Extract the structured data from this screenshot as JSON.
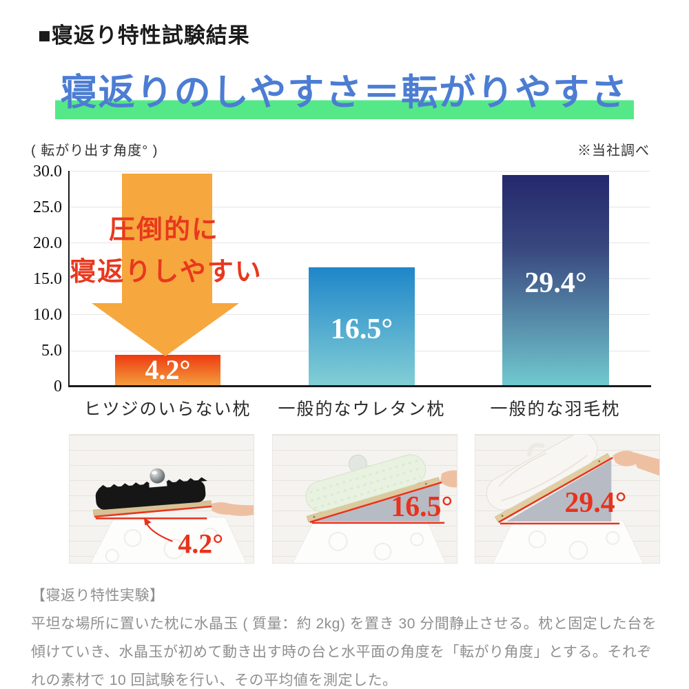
{
  "page": {
    "title": "■寝返り特性試験結果"
  },
  "banner": {
    "text": "寝返りのしやすさ＝転がりやすさ",
    "text_color": "#4c7dd2",
    "highlight_color": "#55e888"
  },
  "notes": {
    "y_axis_unit": "( 転がり出す角度° )",
    "source": "※当社調べ"
  },
  "chart": {
    "chart_data": {
      "type": "bar",
      "categories": [
        "ヒツジのいらない枕",
        "一般的なウレタン枕",
        "一般的な羽毛枕"
      ],
      "values": [
        4.2,
        16.5,
        29.4
      ],
      "value_labels": [
        "4.2°",
        "16.5°",
        "29.4°"
      ],
      "ylabel": "( 転がり出す角度° )",
      "ylim": [
        0,
        30
      ],
      "ytick_labels": [
        "30.0",
        "25.0",
        "20.0",
        "15.0",
        "10.0",
        "5.0",
        "0"
      ],
      "grid": true,
      "legend": false,
      "bar_gradients": [
        [
          "#ee3a10",
          "#f49d3c"
        ],
        [
          "#1f86c9",
          "#82ced5"
        ],
        [
          "#24286c",
          "#70c9cf"
        ]
      ],
      "annotation": {
        "line1": "圧倒的に",
        "line2": "寝返りしやすい",
        "color": "#e8381e",
        "arrow_color": "#f6a73e"
      }
    }
  },
  "photos": [
    {
      "angle_label": "4.2°"
    },
    {
      "angle_label": "16.5°"
    },
    {
      "angle_label": "29.4°"
    }
  ],
  "caption": {
    "heading": "【寝返り特性実験】",
    "body": "平坦な場所に置いた枕に水晶玉 ( 質量：約 2kg) を置き 30 分間静止させる。枕と固定した台を傾けていき、水晶玉が初めて動き出す時の台と水平面の角度を「転がり角度」とする。それぞれの素材で 10 回試験を行い、その平均値を測定した。"
  }
}
